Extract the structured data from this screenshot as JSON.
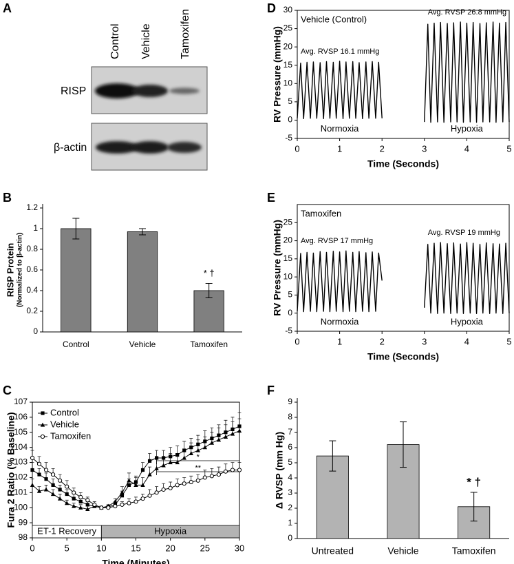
{
  "blot": {
    "panel": "A",
    "lanes": [
      "Control",
      "Vehicle",
      "Tamoxifen"
    ],
    "rows": [
      "RISP",
      "β-actin"
    ]
  },
  "chart_data": [
    {
      "panel": "B",
      "type": "bar",
      "ylabel": "RISP Protein",
      "ylabel_note": "(Normalized to β-actin)",
      "categories": [
        "Control",
        "Vehicle",
        "Tamoxifen"
      ],
      "values": [
        1,
        0.97,
        0.4
      ],
      "errors": [
        0.1,
        0.03,
        0.07
      ],
      "error_bars": "both",
      "value_annotations": [
        null,
        null,
        "* †"
      ],
      "color": "#808080",
      "ylim": [
        0,
        1.2
      ],
      "yticks": [
        0,
        0.2,
        0.4,
        0.6,
        0.8,
        1,
        1.2
      ],
      "frame": false
    },
    {
      "panel": "C",
      "type": "line",
      "xlabel": "Time (Minutes)",
      "ylabel": "Fura 2 Ratio (% Baseline)",
      "x": [
        0,
        1,
        2,
        3,
        4,
        5,
        6,
        7,
        8,
        9,
        10,
        11,
        12,
        13,
        14,
        15,
        16,
        17,
        18,
        19,
        20,
        21,
        22,
        23,
        24,
        25,
        26,
        27,
        28,
        29,
        30
      ],
      "xlim": [
        0,
        30
      ],
      "xticks": [
        0,
        5,
        10,
        15,
        20,
        25,
        30
      ],
      "ylim": [
        98,
        107
      ],
      "yticks": [
        98,
        99,
        100,
        101,
        102,
        103,
        104,
        105,
        106,
        107
      ],
      "legend": "upper left",
      "error_bars": "up",
      "frame": true,
      "series": [
        {
          "name": "Control",
          "color": "#000000",
          "marker": "square",
          "values": [
            102.5,
            102.2,
            101.9,
            101.5,
            101.2,
            100.9,
            100.6,
            100.4,
            100.2,
            100.1,
            100.0,
            100.05,
            100.2,
            100.8,
            101.5,
            101.7,
            102.5,
            103.1,
            103.3,
            103.3,
            103.4,
            103.5,
            103.8,
            104.0,
            104.2,
            104.4,
            104.6,
            104.8,
            105.0,
            105.2,
            105.4
          ],
          "errors": [
            0.5,
            0.4,
            0.4,
            0.4,
            0.3,
            0.3,
            0.3,
            0.2,
            0.2,
            0.1,
            0.1,
            0.1,
            0.2,
            0.3,
            0.4,
            0.4,
            0.5,
            0.5,
            0.5,
            0.5,
            0.6,
            0.6,
            0.6,
            0.6,
            0.6,
            0.7,
            0.7,
            0.7,
            0.8,
            0.8,
            0.9
          ]
        },
        {
          "name": "Vehicle",
          "color": "#000000",
          "marker": "triangle",
          "values": [
            101.5,
            101.1,
            101.2,
            100.9,
            100.6,
            100.3,
            100.1,
            100.0,
            99.9,
            100.1,
            100.0,
            100.1,
            100.4,
            101.0,
            101.8,
            101.5,
            101.5,
            102.2,
            102.6,
            102.8,
            103.0,
            103.0,
            103.3,
            103.6,
            103.8,
            104.0,
            104.3,
            104.5,
            104.7,
            104.9,
            105.1
          ],
          "errors": [
            0.4,
            0.3,
            0.3,
            0.3,
            0.3,
            0.2,
            0.2,
            0.2,
            0.2,
            0.1,
            0.1,
            0.1,
            0.2,
            0.4,
            0.5,
            0.5,
            0.5,
            0.5,
            0.6,
            0.6,
            0.6,
            0.6,
            0.6,
            0.7,
            0.7,
            0.7,
            0.7,
            0.8,
            0.8,
            0.8,
            0.8
          ]
        },
        {
          "name": "Tamoxifen",
          "color": "#000000",
          "marker": "circle-open",
          "values": [
            103.3,
            102.9,
            102.5,
            102.2,
            101.8,
            101.4,
            101.0,
            100.7,
            100.5,
            100.2,
            100.0,
            100.0,
            100.1,
            100.2,
            100.3,
            100.4,
            100.6,
            100.8,
            101.0,
            101.2,
            101.3,
            101.5,
            101.6,
            101.7,
            101.8,
            102.0,
            102.1,
            102.2,
            102.4,
            102.5,
            102.5
          ],
          "errors": [
            0.5,
            0.5,
            0.5,
            0.4,
            0.4,
            0.4,
            0.3,
            0.3,
            0.2,
            0.2,
            0.1,
            0.1,
            0.2,
            0.2,
            0.3,
            0.3,
            0.3,
            0.4,
            0.4,
            0.4,
            0.4,
            0.4,
            0.4,
            0.4,
            0.4,
            0.5,
            0.5,
            0.5,
            0.5,
            0.5,
            0.5
          ]
        }
      ],
      "phases": [
        {
          "label": "ET-1 Recovery",
          "start": 0,
          "end": 10,
          "color": "#ffffff"
        },
        {
          "label": "Hypoxia",
          "start": 10,
          "end": 30,
          "color": "#b3b3b3"
        }
      ],
      "significance": [
        {
          "text": "*",
          "start": 18,
          "end": 30
        },
        {
          "text": "**",
          "start": 18,
          "end": 30
        }
      ]
    },
    {
      "panel": "D",
      "type": "line",
      "subtitle": "Vehicle (Control)",
      "xlabel": "Time (Seconds)",
      "ylabel": "RV Pressure (mmHg)",
      "xlim": [
        0,
        5
      ],
      "xticks": [
        0,
        1,
        2,
        3,
        4,
        5
      ],
      "ylim": [
        -5,
        30
      ],
      "yticks": [
        -5,
        0,
        5,
        10,
        15,
        20,
        25,
        30
      ],
      "frame": true,
      "series": [
        {
          "name": "Normoxia",
          "label": "Avg. RVSP 16.1 mmHg",
          "color": "#000000",
          "x": [
            0,
            0.08,
            0.15,
            0.23,
            0.31,
            0.38,
            0.46,
            0.54,
            0.62,
            0.69,
            0.77,
            0.85,
            0.92,
            1.0,
            1.08,
            1.15,
            1.23,
            1.31,
            1.38,
            1.46,
            1.54,
            1.62,
            1.69,
            1.77,
            1.85,
            1.92,
            2.0
          ],
          "values": [
            0.5,
            15.6,
            0.4,
            15.8,
            0.5,
            15.9,
            0.5,
            15.7,
            0.4,
            16.0,
            0.5,
            15.8,
            0.5,
            16.1,
            0.4,
            15.9,
            0.5,
            16.0,
            0.5,
            15.7,
            0.4,
            15.9,
            0.5,
            16.0,
            0.5,
            15.8,
            0.5
          ]
        },
        {
          "name": "Hypoxia",
          "label": "Avg. RVSP 26.8 mmHg",
          "color": "#000000",
          "x": [
            3,
            3.08,
            3.15,
            3.23,
            3.31,
            3.38,
            3.46,
            3.54,
            3.62,
            3.69,
            3.77,
            3.85,
            3.92,
            4.0,
            4.08,
            4.15,
            4.23,
            4.31,
            4.38,
            4.46,
            4.54,
            4.62,
            4.69,
            4.77,
            4.85,
            4.92,
            5.0
          ],
          "values": [
            -0.5,
            26.2,
            -0.6,
            26.5,
            -0.5,
            26.7,
            -0.6,
            26.4,
            -0.5,
            26.6,
            -0.5,
            26.8,
            -0.6,
            26.5,
            -0.5,
            26.7,
            -0.6,
            26.4,
            -0.5,
            26.6,
            -0.5,
            26.8,
            -0.6,
            26.5,
            -0.5,
            26.7,
            -0.5
          ]
        }
      ]
    },
    {
      "panel": "E",
      "type": "line",
      "subtitle": "Tamoxifen",
      "xlabel": "Time (Seconds)",
      "ylabel": "RV Pressure (mmHg)",
      "xlim": [
        0,
        5
      ],
      "xticks": [
        0,
        1,
        2,
        3,
        4,
        5
      ],
      "ylim": [
        -5,
        30
      ],
      "yticks": [
        -5,
        0,
        5,
        10,
        15,
        20,
        25
      ],
      "frame": true,
      "series": [
        {
          "name": "Normoxia",
          "label": "Avg. RVSP 17 mmHg",
          "color": "#000000",
          "x": [
            0,
            0.08,
            0.15,
            0.23,
            0.31,
            0.38,
            0.46,
            0.54,
            0.62,
            0.69,
            0.77,
            0.85,
            0.92,
            1.0,
            1.08,
            1.15,
            1.23,
            1.31,
            1.38,
            1.46,
            1.54,
            1.62,
            1.69,
            1.77,
            1.85,
            1.92,
            2.0
          ],
          "values": [
            0.5,
            16.5,
            0.4,
            16.8,
            0.5,
            16.6,
            0.4,
            17.0,
            0.5,
            16.8,
            0.4,
            17.1,
            0.5,
            16.9,
            0.4,
            17.2,
            0.5,
            16.8,
            0.4,
            17.0,
            0.5,
            16.7,
            0.4,
            16.9,
            0.5,
            16.6,
            9.0
          ]
        },
        {
          "name": "Hypoxia",
          "label": "Avg. RVSP 19 mmHg",
          "color": "#000000",
          "x": [
            3,
            3.08,
            3.15,
            3.23,
            3.31,
            3.38,
            3.46,
            3.54,
            3.62,
            3.69,
            3.77,
            3.85,
            3.92,
            4.0,
            4.08,
            4.15,
            4.23,
            4.31,
            4.38,
            4.46,
            4.54,
            4.62,
            4.69,
            4.77,
            4.85,
            4.92,
            5.0
          ],
          "values": [
            1.5,
            19.0,
            0.0,
            19.3,
            -0.1,
            19.5,
            0.0,
            19.2,
            -0.1,
            19.4,
            0.0,
            19.1,
            -0.1,
            19.5,
            0.0,
            19.3,
            -0.1,
            19.0,
            0.0,
            19.4,
            -0.1,
            19.2,
            0.0,
            19.1,
            -0.1,
            19.3,
            0.0
          ]
        }
      ]
    },
    {
      "panel": "F",
      "type": "bar",
      "ylabel": "Δ RVSP (mm Hg)",
      "categories": [
        "Untreated",
        "Vehicle",
        "Tamoxifen"
      ],
      "values": [
        5.45,
        6.2,
        2.1
      ],
      "errors": [
        1.0,
        1.5,
        0.95
      ],
      "error_bars": "both",
      "value_annotations": [
        null,
        null,
        "* †"
      ],
      "color": "#b3b3b3",
      "ylim": [
        0,
        9
      ],
      "yticks": [
        0,
        1,
        2,
        3,
        4,
        5,
        6,
        7,
        8,
        9
      ],
      "frame": false
    }
  ]
}
